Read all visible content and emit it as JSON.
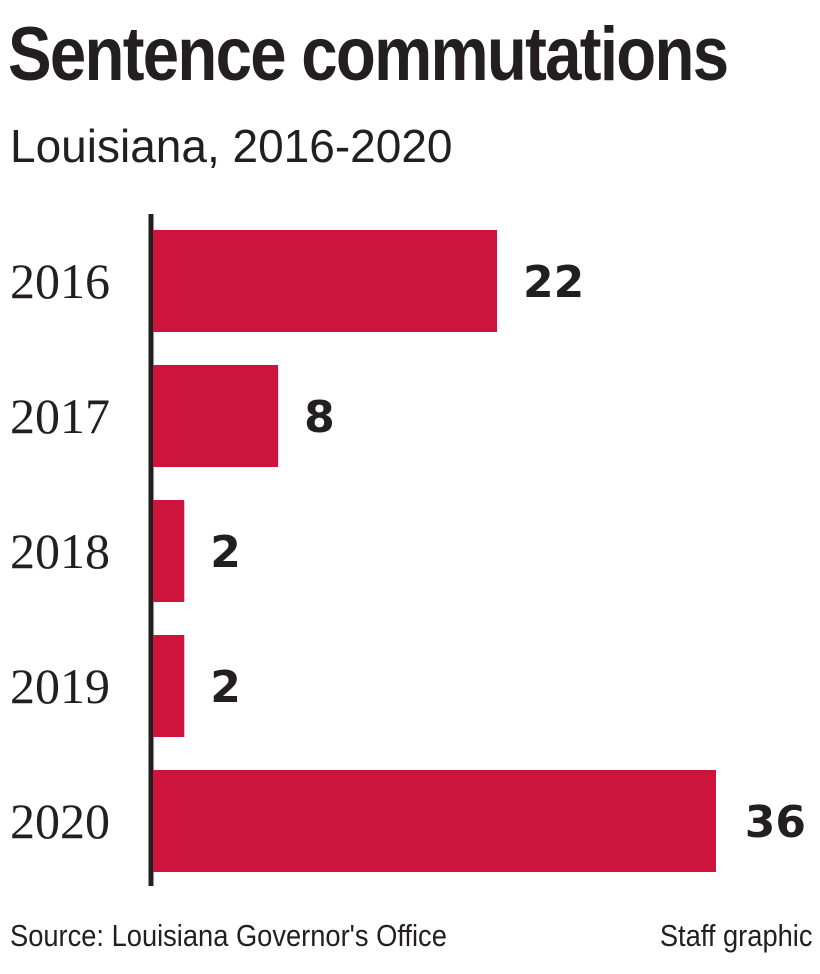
{
  "header": {
    "title": "Sentence commutations",
    "subtitle": "Louisiana, 2016-2020"
  },
  "footer": {
    "source": "Source: Louisiana Governor's Office",
    "credit": "Staff graphic"
  },
  "colors": {
    "bar": "#cc143c",
    "text": "#231f20",
    "axis": "#231f20"
  },
  "chart_data": {
    "type": "bar",
    "orientation": "horizontal",
    "title": "Sentence commutations",
    "subtitle": "Louisiana, 2016-2020",
    "xlabel": "",
    "ylabel": "",
    "categories": [
      "2016",
      "2017",
      "2018",
      "2019",
      "2020"
    ],
    "values": [
      22,
      8,
      2,
      2,
      36
    ],
    "data_labels": [
      "22",
      "8",
      "2",
      "2",
      "36"
    ],
    "xlim": [
      0,
      36
    ],
    "grid": false,
    "legend": "none"
  }
}
